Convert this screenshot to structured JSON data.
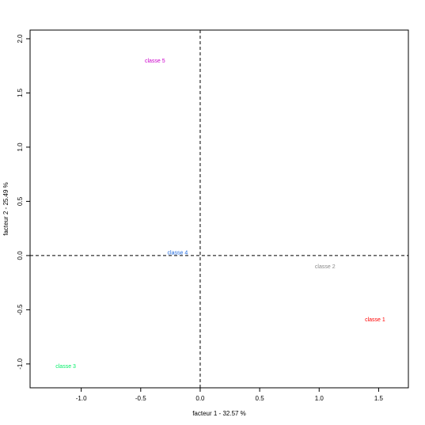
{
  "chart_data": {
    "type": "scatter",
    "title": "",
    "xlabel": "facteur  1  - 32.57 %",
    "ylabel": "facteur  2  - 25.49 %",
    "xlim": [
      -1.43,
      1.75
    ],
    "ylim": [
      -1.22,
      2.08
    ],
    "xticks": [
      -1.0,
      -0.5,
      0.0,
      0.5,
      1.0,
      1.5
    ],
    "xtick_labels": [
      "-1.0",
      "-0.5",
      "0.0",
      "0.5",
      "1.0",
      "1.5"
    ],
    "yticks": [
      -1.0,
      -0.5,
      0.0,
      0.5,
      1.0,
      1.5,
      2.0
    ],
    "ytick_labels": [
      "-1.0",
      "-0.5",
      "0.0",
      "0.5",
      "1.0",
      "1.5",
      "2.0"
    ],
    "grid": false,
    "reference_lines": {
      "x": 0,
      "y": 0,
      "style": "dashed"
    },
    "points": [
      {
        "label": "classe 1",
        "x": 1.47,
        "y": -0.59,
        "color": "#ff0000"
      },
      {
        "label": "classe 2",
        "x": 1.05,
        "y": -0.1,
        "color": "#888888"
      },
      {
        "label": "classe 3",
        "x": -1.13,
        "y": -1.02,
        "color": "#00ee66"
      },
      {
        "label": "classe 4",
        "x": -0.19,
        "y": 0.03,
        "color": "#1a66dd"
      },
      {
        "label": "classe 5",
        "x": -0.38,
        "y": 1.8,
        "color": "#cc00cc"
      }
    ]
  }
}
